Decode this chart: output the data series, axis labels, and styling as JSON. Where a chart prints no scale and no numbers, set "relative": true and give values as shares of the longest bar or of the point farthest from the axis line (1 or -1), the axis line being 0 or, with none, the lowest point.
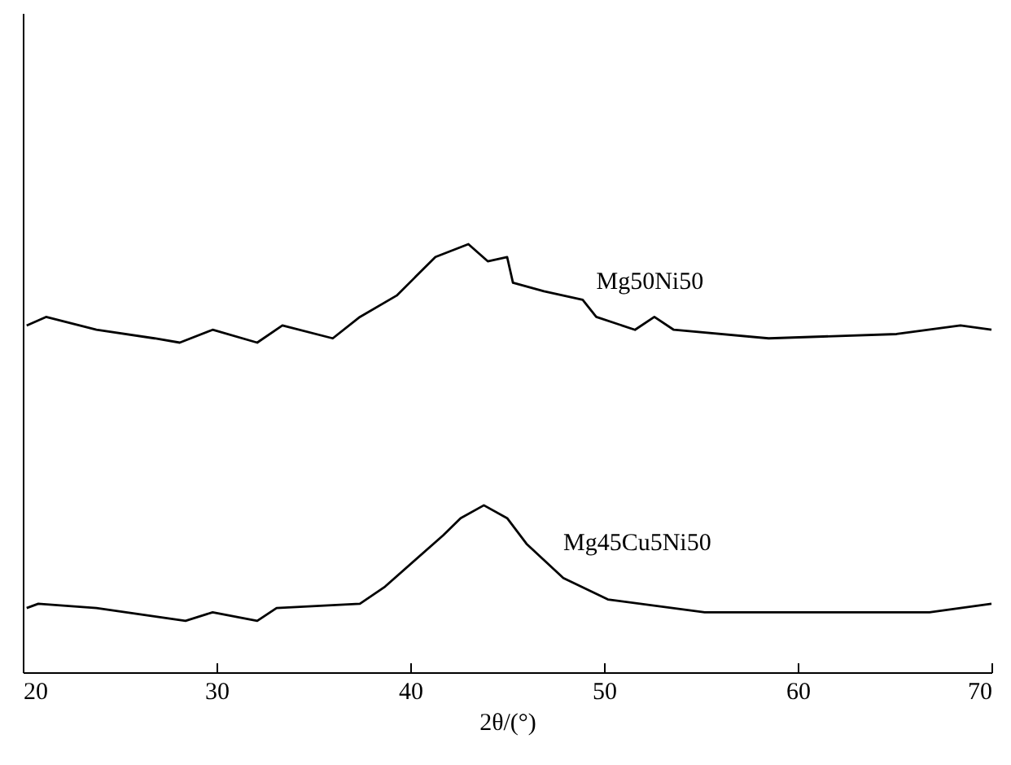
{
  "chart_data": {
    "type": "line",
    "xlabel": "2θ/(°)",
    "relative": true,
    "xlim": [
      20,
      70
    ],
    "xticks": [
      20,
      30,
      40,
      50,
      60,
      70
    ],
    "series": [
      {
        "name": "Mg50Ni50",
        "color": "#000000",
        "x": [
          20.2,
          21.2,
          23.8,
          26.8,
          28.1,
          29.8,
          32.1,
          33.4,
          36.0,
          37.4,
          39.3,
          41.3,
          43.0,
          44.0,
          45.0,
          45.3,
          46.9,
          48.9,
          49.6,
          51.6,
          52.6,
          53.6,
          58.5,
          65.1,
          68.4,
          70
        ],
        "values": [
          0.81,
          0.83,
          0.8,
          0.78,
          0.77,
          0.8,
          0.77,
          0.81,
          0.78,
          0.83,
          0.88,
          0.97,
          1.0,
          0.96,
          0.97,
          0.91,
          0.89,
          0.87,
          0.83,
          0.8,
          0.83,
          0.8,
          0.78,
          0.79,
          0.81,
          0.8
        ]
      },
      {
        "name": "Mg45Cu5Ni50",
        "color": "#000000",
        "x": [
          20.2,
          20.8,
          23.8,
          28.4,
          29.8,
          32.1,
          33.1,
          37.4,
          38.7,
          41.7,
          42.6,
          43.8,
          45.0,
          46.0,
          47.9,
          50.2,
          55.2,
          61.8,
          66.8,
          70
        ],
        "values": [
          0.15,
          0.16,
          0.15,
          0.12,
          0.14,
          0.12,
          0.15,
          0.16,
          0.2,
          0.32,
          0.36,
          0.39,
          0.36,
          0.3,
          0.22,
          0.17,
          0.14,
          0.14,
          0.14,
          0.16
        ]
      }
    ]
  }
}
